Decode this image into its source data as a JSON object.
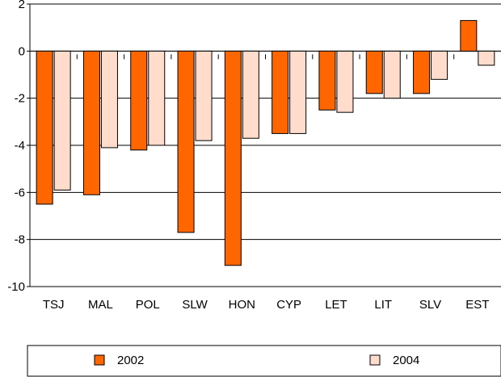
{
  "chart_data": {
    "type": "bar",
    "categories": [
      "TSJ",
      "MAL",
      "POL",
      "SLW",
      "HON",
      "CYP",
      "LET",
      "LIT",
      "SLV",
      "EST"
    ],
    "series": [
      {
        "name": "2002",
        "color": "#ff6600",
        "values": [
          -6.5,
          -6.1,
          -4.2,
          -7.7,
          -9.1,
          -3.5,
          -2.5,
          -1.8,
          -1.8,
          1.3
        ]
      },
      {
        "name": "2004",
        "color": "#ffdccc",
        "values": [
          -5.9,
          -4.1,
          -4.0,
          -3.8,
          -3.7,
          -3.5,
          -2.6,
          -2.0,
          -1.2,
          -0.6
        ]
      }
    ],
    "yticks": [
      "2",
      "0",
      "-2",
      "-4",
      "-6",
      "-8",
      "-10"
    ],
    "ylim": [
      -10,
      2
    ],
    "grid": true,
    "legend_position": "bottom"
  }
}
